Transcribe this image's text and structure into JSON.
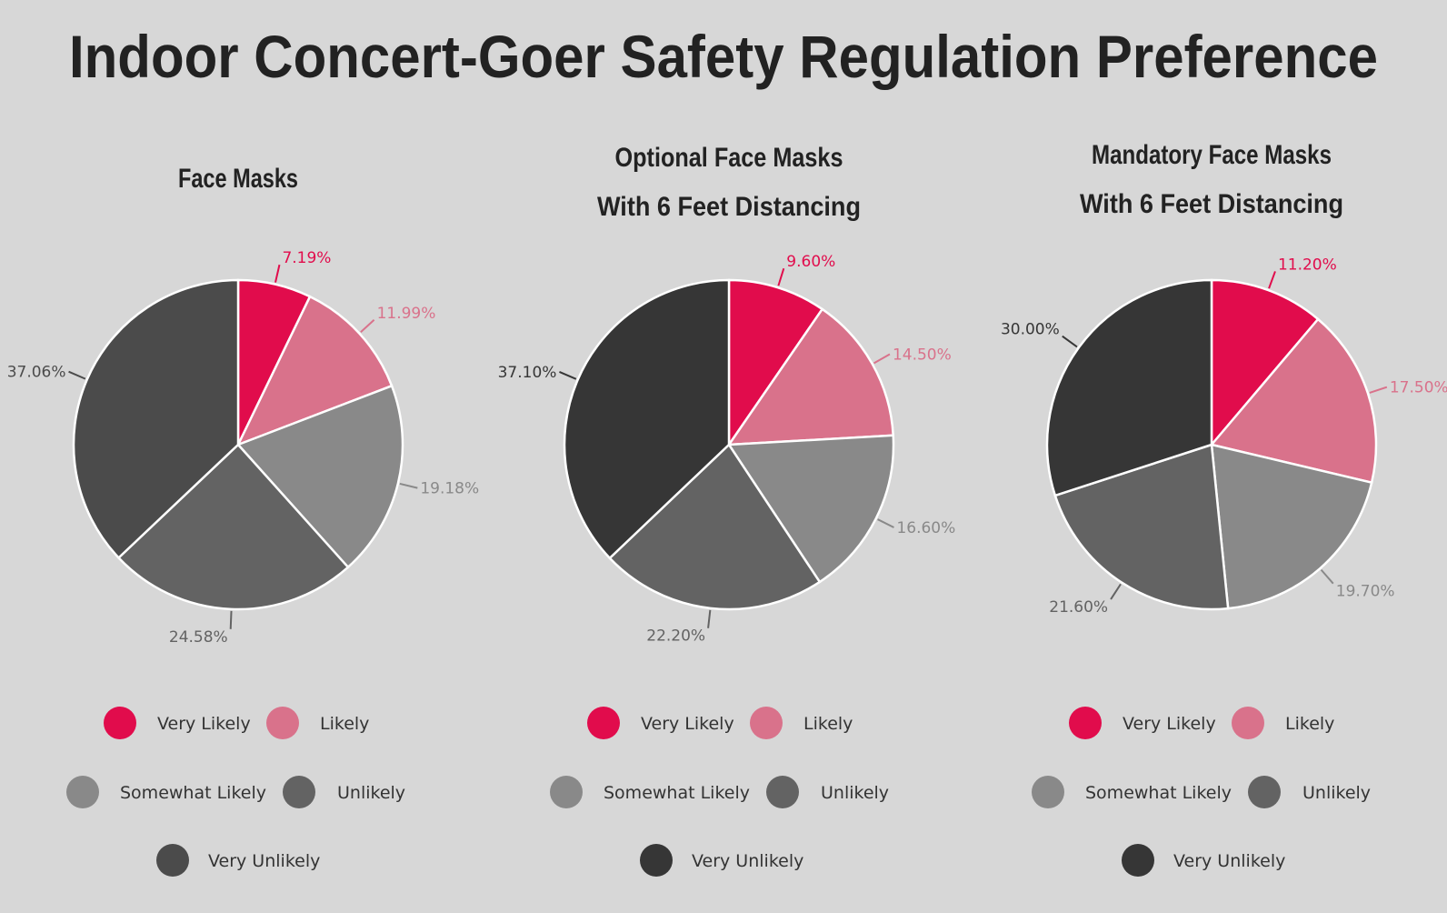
{
  "title": "Indoor Concert-Goer Safety Regulation Preference",
  "chart_data": [
    {
      "type": "pie",
      "title_lines": [
        "Face Masks"
      ],
      "categories": [
        "Very Likely",
        "Likely",
        "Somewhat Likely",
        "Unlikely",
        "Very Unlikely"
      ],
      "values": [
        7.19,
        11.99,
        19.18,
        24.58,
        37.06
      ],
      "labels": [
        "7.19%",
        "11.99%",
        "19.18%",
        "24.58%",
        "37.06%"
      ],
      "colors": [
        "#e10c4c",
        "#d9728b",
        "#898989",
        "#636363",
        "#4b4b4b"
      ],
      "legend": "bottom"
    },
    {
      "type": "pie",
      "title_lines": [
        "Optional Face Masks",
        "With 6 Feet Distancing"
      ],
      "categories": [
        "Very Likely",
        "Likely",
        "Somewhat Likely",
        "Unlikely",
        "Very Unlikely"
      ],
      "values": [
        9.6,
        14.5,
        16.6,
        22.2,
        37.1
      ],
      "labels": [
        "9.60%",
        "14.50%",
        "16.60%",
        "22.20%",
        "37.10%"
      ],
      "colors": [
        "#e10c4c",
        "#d9728b",
        "#898989",
        "#636363",
        "#363636"
      ],
      "legend": "bottom"
    },
    {
      "type": "pie",
      "title_lines": [
        "Mandatory Face Masks",
        "With 6 Feet Distancing"
      ],
      "categories": [
        "Very Likely",
        "Likely",
        "Somewhat Likely",
        "Unlikely",
        "Very Unlikely"
      ],
      "values": [
        11.2,
        17.5,
        19.7,
        21.6,
        30.0
      ],
      "labels": [
        "11.20%",
        "17.50%",
        "19.70%",
        "21.60%",
        "30.00%"
      ],
      "colors": [
        "#e10c4c",
        "#d9728b",
        "#898989",
        "#636363",
        "#363636"
      ],
      "legend": "bottom"
    }
  ]
}
